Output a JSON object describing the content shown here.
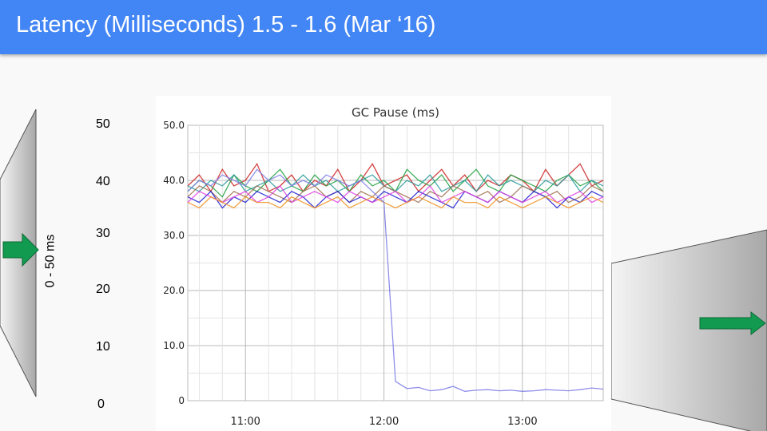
{
  "slide": {
    "title": "Latency (Milliseconds) 1.5 - 1.6 (Mar ‘16)",
    "range_label": "0 - 50 ms",
    "scale_labels": [
      "50",
      "40",
      "30",
      "20",
      "10",
      "0"
    ],
    "header_color": "#4285f4",
    "arrow_color": "#129a50"
  },
  "chart_data": {
    "type": "line",
    "title": "GC Pause (ms)",
    "xlabel": "",
    "ylabel": "",
    "ylim": [
      0,
      50
    ],
    "yticks": [
      "0",
      "10.0",
      "20.0",
      "30.0",
      "40.0",
      "50.0"
    ],
    "xtick_labels": [
      "11:00",
      "12:00",
      "13:00"
    ],
    "xlim": [
      "10:35",
      "13:35"
    ],
    "grid": true,
    "x": [
      "10:35",
      "10:40",
      "10:45",
      "10:50",
      "10:55",
      "11:00",
      "11:05",
      "11:10",
      "11:15",
      "11:20",
      "11:25",
      "11:30",
      "11:35",
      "11:40",
      "11:45",
      "11:50",
      "11:55",
      "12:00",
      "12:05",
      "12:10",
      "12:15",
      "12:20",
      "12:25",
      "12:30",
      "12:35",
      "12:40",
      "12:45",
      "12:50",
      "12:55",
      "13:00",
      "13:05",
      "13:10",
      "13:15",
      "13:20",
      "13:25",
      "13:30",
      "13:35"
    ],
    "series": [
      {
        "color": "#cc2020",
        "values": [
          39,
          41,
          38,
          42,
          39,
          40,
          43,
          38,
          39,
          41,
          38,
          40,
          39,
          42,
          38,
          40,
          43,
          39,
          40,
          41,
          38,
          40,
          42,
          39,
          41,
          38,
          40,
          39,
          41,
          40,
          38,
          42,
          39,
          41,
          43,
          39,
          40
        ]
      },
      {
        "color": "#20a040",
        "values": [
          38,
          40,
          39,
          37,
          41,
          39,
          38,
          40,
          42,
          39,
          38,
          41,
          39,
          40,
          38,
          41,
          39,
          40,
          38,
          42,
          40,
          39,
          41,
          38,
          40,
          42,
          39,
          38,
          41,
          40,
          39,
          38,
          40,
          41,
          39,
          40,
          38
        ]
      },
      {
        "color": "#2a9a9a",
        "values": [
          39,
          38,
          40,
          39,
          41,
          38,
          39,
          40,
          38,
          39,
          41,
          39,
          40,
          38,
          39,
          40,
          41,
          39,
          38,
          40,
          39,
          41,
          38,
          39,
          40,
          38,
          41,
          39,
          40,
          39,
          38,
          40,
          39,
          41,
          38,
          40,
          39
        ]
      },
      {
        "color": "#a07050",
        "values": [
          37,
          39,
          38,
          36,
          38,
          37,
          39,
          38,
          37,
          36,
          38,
          39,
          37,
          38,
          36,
          38,
          37,
          39,
          38,
          37,
          36,
          38,
          37,
          39,
          38,
          37,
          38,
          36,
          37,
          39,
          38,
          37,
          38,
          36,
          37,
          39,
          38
        ]
      },
      {
        "color": "#2020d0",
        "values": [
          37,
          36,
          38,
          35,
          37,
          36,
          38,
          37,
          36,
          38,
          37,
          35,
          37,
          38,
          36,
          37,
          36,
          38,
          37,
          36,
          38,
          37,
          36,
          35,
          38,
          37,
          36,
          38,
          37,
          36,
          38,
          37,
          35,
          37,
          36,
          38,
          37
        ]
      },
      {
        "color": "#e040e0",
        "values": [
          36,
          38,
          37,
          36,
          37,
          38,
          36,
          37,
          39,
          36,
          37,
          38,
          37,
          36,
          38,
          37,
          36,
          37,
          38,
          36,
          37,
          39,
          36,
          37,
          38,
          37,
          36,
          38,
          37,
          36,
          37,
          38,
          36,
          37,
          38,
          36,
          37
        ]
      },
      {
        "color": "#f09020",
        "values": [
          36,
          35,
          37,
          36,
          35,
          37,
          36,
          36,
          35,
          37,
          36,
          35,
          36,
          37,
          35,
          36,
          37,
          36,
          35,
          36,
          37,
          36,
          35,
          37,
          36,
          36,
          35,
          37,
          36,
          35,
          36,
          37,
          36,
          35,
          36,
          37,
          36
        ]
      },
      {
        "color": "#7b7be8",
        "values": [
          38,
          40,
          39,
          41,
          40,
          39,
          42,
          40,
          41,
          39,
          40,
          39,
          41,
          40,
          39,
          40,
          38,
          36,
          3.5,
          2.2,
          2.4,
          1.8,
          2.0,
          2.6,
          1.7,
          1.9,
          2.0,
          1.8,
          1.9,
          1.7,
          1.8,
          2.0,
          1.9,
          1.8,
          2.0,
          2.3,
          2.1
        ]
      }
    ]
  }
}
